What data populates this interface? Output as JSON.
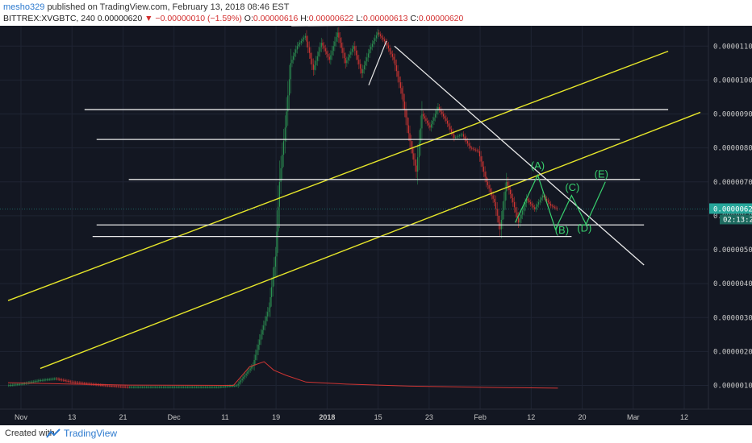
{
  "header": {
    "author": "mesho329",
    "published_text": "published on TradingView.com, February 13, 2018 08:46 EST",
    "symbol": "BITTREX:XVGBTC, 240",
    "last": "0.00000620",
    "change": "▼ −0.00000010 (−1.59%)",
    "open_label": "O:",
    "open": "0.00000616",
    "high_label": "H:",
    "high": "0.00000622",
    "low_label": "L:",
    "low": "0.00000613",
    "close_label": "C:",
    "close": "0.00000620"
  },
  "footer": {
    "created_with": "Created with",
    "brand": "TradingView"
  },
  "colors": {
    "background": "#131722",
    "grid": "#1f2433",
    "up": "#2e9e57",
    "down": "#e53935",
    "trendline_white": "#e8e8e8",
    "channel_yellow": "#e6e62a",
    "wave_green": "#38d06e",
    "price_tag": "#26a69a"
  },
  "chart_data": {
    "type": "candlestick",
    "symbol": "BITTREX:XVGBTC",
    "interval": "240",
    "y_tick_labels": [
      "0.00000100",
      "0.00000200",
      "0.00000300",
      "0.00000400",
      "0.00000500",
      "0.00000600",
      "0.00000700",
      "0.00000800",
      "0.00000900",
      "0.00001000",
      "0.00001100"
    ],
    "x_tick_labels": [
      "Nov",
      "13",
      "21",
      "Dec",
      "11",
      "19",
      "2018",
      "15",
      "23",
      "Feb",
      "12",
      "20",
      "Mar",
      "12"
    ],
    "current_price_label": "0.00000620",
    "countdown_label": "02:13:25",
    "price_tags_y": [
      620
    ],
    "y_values_units": "satoshi",
    "ylim": [
      30,
      1160
    ],
    "price_path": [
      {
        "x": 0,
        "y": 100
      },
      {
        "x": 20,
        "y": 105
      },
      {
        "x": 40,
        "y": 115
      },
      {
        "x": 60,
        "y": 120
      },
      {
        "x": 80,
        "y": 110
      },
      {
        "x": 100,
        "y": 105
      },
      {
        "x": 120,
        "y": 100
      },
      {
        "x": 150,
        "y": 95
      },
      {
        "x": 200,
        "y": 95
      },
      {
        "x": 260,
        "y": 95
      },
      {
        "x": 285,
        "y": 100
      },
      {
        "x": 295,
        "y": 130
      },
      {
        "x": 305,
        "y": 160
      },
      {
        "x": 315,
        "y": 250
      },
      {
        "x": 325,
        "y": 330
      },
      {
        "x": 333,
        "y": 480
      },
      {
        "x": 338,
        "y": 700
      },
      {
        "x": 345,
        "y": 860
      },
      {
        "x": 352,
        "y": 1050
      },
      {
        "x": 360,
        "y": 1100
      },
      {
        "x": 370,
        "y": 1130
      },
      {
        "x": 380,
        "y": 1030
      },
      {
        "x": 390,
        "y": 1110
      },
      {
        "x": 400,
        "y": 1060
      },
      {
        "x": 410,
        "y": 1140
      },
      {
        "x": 420,
        "y": 1050
      },
      {
        "x": 430,
        "y": 1100
      },
      {
        "x": 440,
        "y": 1020
      },
      {
        "x": 450,
        "y": 1090
      },
      {
        "x": 460,
        "y": 1140
      },
      {
        "x": 470,
        "y": 1110
      },
      {
        "x": 480,
        "y": 1060
      },
      {
        "x": 490,
        "y": 960
      },
      {
        "x": 500,
        "y": 820
      },
      {
        "x": 508,
        "y": 730
      },
      {
        "x": 515,
        "y": 900
      },
      {
        "x": 525,
        "y": 860
      },
      {
        "x": 535,
        "y": 920
      },
      {
        "x": 545,
        "y": 880
      },
      {
        "x": 555,
        "y": 830
      },
      {
        "x": 565,
        "y": 840
      },
      {
        "x": 575,
        "y": 800
      },
      {
        "x": 585,
        "y": 790
      },
      {
        "x": 595,
        "y": 700
      },
      {
        "x": 605,
        "y": 640
      },
      {
        "x": 612,
        "y": 560
      },
      {
        "x": 620,
        "y": 700
      },
      {
        "x": 628,
        "y": 640
      },
      {
        "x": 635,
        "y": 580
      },
      {
        "x": 645,
        "y": 650
      },
      {
        "x": 655,
        "y": 620
      },
      {
        "x": 665,
        "y": 660
      },
      {
        "x": 675,
        "y": 630
      },
      {
        "x": 683,
        "y": 620
      }
    ],
    "volume_path": [
      {
        "x": 0,
        "y": 108
      },
      {
        "x": 40,
        "y": 106
      },
      {
        "x": 80,
        "y": 104
      },
      {
        "x": 150,
        "y": 101
      },
      {
        "x": 280,
        "y": 100
      },
      {
        "x": 300,
        "y": 155
      },
      {
        "x": 318,
        "y": 170
      },
      {
        "x": 330,
        "y": 145
      },
      {
        "x": 345,
        "y": 130
      },
      {
        "x": 370,
        "y": 110
      },
      {
        "x": 420,
        "y": 104
      },
      {
        "x": 500,
        "y": 98
      },
      {
        "x": 600,
        "y": 94
      },
      {
        "x": 683,
        "y": 92
      }
    ],
    "channel_lines": [
      {
        "x1": 0,
        "y1": 350,
        "x2": 820,
        "y2": 1085
      },
      {
        "x1": 40,
        "y1": 150,
        "x2": 860,
        "y2": 905
      }
    ],
    "horizontal_levels": [
      {
        "x1": 95,
        "x2": 820,
        "y": 913
      },
      {
        "x1": 110,
        "x2": 760,
        "y": 825
      },
      {
        "x1": 150,
        "x2": 785,
        "y": 707
      },
      {
        "x1": 110,
        "x2": 790,
        "y": 573
      },
      {
        "x1": 105,
        "x2": 700,
        "y": 539
      }
    ],
    "top_resistance": {
      "x1": 352,
      "y1": 1160,
      "x2": 610,
      "y2": 1165
    },
    "down_trendline": {
      "x1": 480,
      "y1": 1100,
      "x2": 790,
      "y2": 455
    },
    "small_line": {
      "x1": 448,
      "y1": 985,
      "x2": 470,
      "y2": 1115
    },
    "wave_path": [
      {
        "x": 630,
        "y": 580
      },
      {
        "x": 658,
        "y": 720
      },
      {
        "x": 680,
        "y": 560
      },
      {
        "x": 700,
        "y": 660
      },
      {
        "x": 718,
        "y": 575
      },
      {
        "x": 742,
        "y": 700
      }
    ],
    "wave_labels": [
      {
        "text": "(A)",
        "x": 658,
        "y": 737
      },
      {
        "text": "(B)",
        "x": 688,
        "y": 548
      },
      {
        "text": "(C)",
        "x": 701,
        "y": 673
      },
      {
        "text": "(D)",
        "x": 716,
        "y": 553
      },
      {
        "text": "(E)",
        "x": 737,
        "y": 712
      }
    ]
  }
}
